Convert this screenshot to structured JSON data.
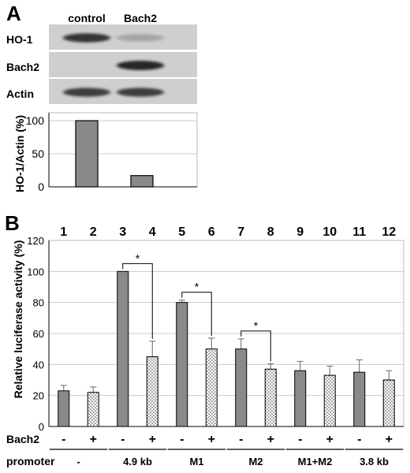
{
  "panel_a": {
    "letter": "A",
    "blot_lanes": [
      "control",
      "Bach2"
    ],
    "blot_rows": [
      {
        "label": "HO-1",
        "bands": [
          0.85,
          0.25
        ]
      },
      {
        "label": "Bach2",
        "bands": [
          0.0,
          1.0
        ]
      },
      {
        "label": "Actin",
        "bands": [
          0.8,
          0.8
        ]
      }
    ]
  },
  "panel_b": {
    "letter": "B",
    "lane_numbers": [
      "1",
      "2",
      "3",
      "4",
      "5",
      "6",
      "7",
      "8",
      "9",
      "10",
      "11",
      "12"
    ],
    "bach2_row_label": "Bach2",
    "bach2_signs": [
      "-",
      "+",
      "-",
      "+",
      "-",
      "+",
      "-",
      "+",
      "-",
      "+",
      "-",
      "+"
    ],
    "promoter_row_label": "promoter",
    "promoter_groups": [
      "-",
      "4.9 kb",
      "M1",
      "M2",
      "M1+M2",
      "3.8 kb"
    ],
    "significance_marker": "*"
  },
  "chart_data": [
    {
      "type": "bar",
      "ylabel": "HO-1/Actin (%)",
      "categories": [
        "control",
        "Bach2"
      ],
      "values": [
        100,
        17
      ],
      "yticks": [
        0,
        50,
        100
      ],
      "ylim": [
        0,
        112
      ],
      "grid": true,
      "bar_color": "#8a8a8a"
    },
    {
      "type": "bar",
      "ylabel": "Relative luciferase activity (%)",
      "categories": [
        "1",
        "2",
        "3",
        "4",
        "5",
        "6",
        "7",
        "8",
        "9",
        "10",
        "11",
        "12"
      ],
      "values": [
        23,
        22,
        100,
        45,
        80,
        50,
        50,
        37,
        36,
        33,
        35,
        30
      ],
      "errors": [
        3.5,
        3.5,
        0,
        10,
        1.5,
        7,
        6.5,
        3.5,
        6,
        6,
        8,
        6
      ],
      "fill": [
        "solid",
        "dotted",
        "solid",
        "dotted",
        "solid",
        "dotted",
        "solid",
        "dotted",
        "solid",
        "dotted",
        "solid",
        "dotted"
      ],
      "yticks": [
        0,
        20,
        40,
        60,
        80,
        100,
        120
      ],
      "ylim": [
        0,
        120
      ],
      "grid": true,
      "solid_color": "#8a8a8a",
      "significance": [
        {
          "from": 3,
          "to": 4,
          "label": "*"
        },
        {
          "from": 5,
          "to": 6,
          "label": "*"
        },
        {
          "from": 7,
          "to": 8,
          "label": "*"
        }
      ]
    }
  ]
}
